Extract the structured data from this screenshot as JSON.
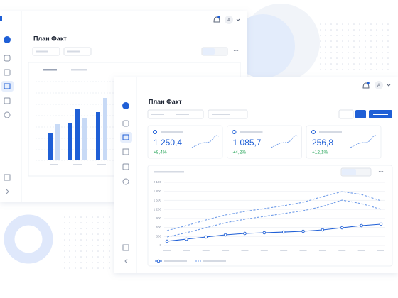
{
  "back_window": {
    "title": "План Факт",
    "avatar": "A"
  },
  "front_window": {
    "title": "План Факт",
    "avatar": "A",
    "kpis": [
      {
        "value": "1 250,4",
        "change": "+8,4%"
      },
      {
        "value": "1 085,7",
        "change": "+4,2%"
      },
      {
        "value": "256,8",
        "change": "+12,1%"
      }
    ]
  },
  "chart_data": {
    "type": "line",
    "categories": [
      null,
      null,
      null,
      null,
      null,
      null,
      null,
      null,
      null,
      null,
      null,
      null
    ],
    "series": [
      {
        "color": "#1f5fd6",
        "style": "solid",
        "markers": true,
        "values": [
          142,
          212,
          283,
          354,
          401,
          425,
          448,
          472,
          519,
          590,
          661,
          708
        ]
      },
      {
        "color": "#6e9be8",
        "style": "dashed",
        "markers": false,
        "values": [
          496,
          661,
          849,
          1015,
          1133,
          1227,
          1321,
          1439,
          1628,
          1793,
          1699,
          1487
        ]
      },
      {
        "color": "#6e9be8",
        "style": "dashed",
        "markers": false,
        "values": [
          283,
          425,
          590,
          755,
          873,
          967,
          1062,
          1156,
          1298,
          1510,
          1392,
          1203
        ]
      }
    ],
    "ylim": [
      0,
      2100
    ],
    "yticks": [
      {
        "value": 2100,
        "label": "2 100"
      },
      {
        "value": 1800,
        "label": "1 800"
      },
      {
        "value": 1500,
        "label": "1 500"
      },
      {
        "value": 1200,
        "label": "1 200"
      },
      900,
      600,
      300,
      0
    ],
    "grid": true
  }
}
